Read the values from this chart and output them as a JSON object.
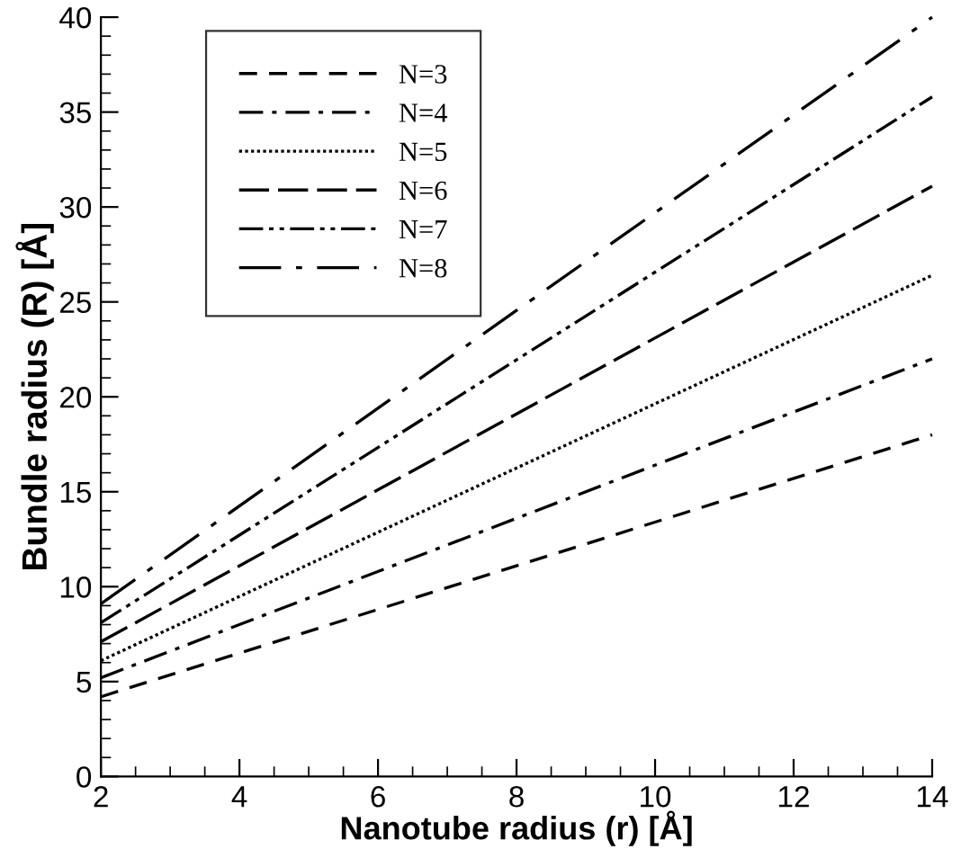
{
  "chart_data": {
    "type": "line",
    "xlabel": "Nanotube radius (r) [Å]",
    "ylabel": "Bundle radius (R) [Å]",
    "x": [
      2,
      14
    ],
    "xlim": [
      2,
      14
    ],
    "xticks": [
      2,
      4,
      6,
      8,
      10,
      12,
      14
    ],
    "ylim": [
      0,
      40
    ],
    "yticks": [
      0,
      5,
      10,
      15,
      20,
      25,
      30,
      35,
      40
    ],
    "grid": false,
    "legend": "top left",
    "marker": "none",
    "series": [
      {
        "name": "N=3",
        "color": "#000000",
        "line_style": "dashed",
        "values": [
          4.2,
          18.0
        ]
      },
      {
        "name": "N=4",
        "color": "#000000",
        "line_style": "dashdot",
        "values": [
          5.2,
          22.0
        ]
      },
      {
        "name": "N=5",
        "color": "#000000",
        "line_style": "dotted",
        "values": [
          6.1,
          26.4
        ]
      },
      {
        "name": "N=6",
        "color": "#000000",
        "line_style": "longdash",
        "values": [
          7.1,
          31.1
        ]
      },
      {
        "name": "N=7",
        "color": "#000000",
        "line_style": "dashdotdot",
        "values": [
          8.1,
          35.8
        ]
      },
      {
        "name": "N=8",
        "color": "#000000",
        "line_style": "longdashdot",
        "values": [
          9.1,
          40.0
        ]
      }
    ]
  }
}
